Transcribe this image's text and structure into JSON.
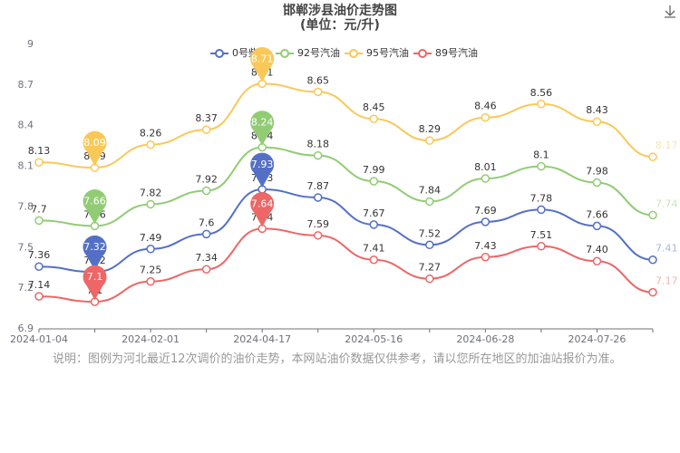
{
  "chart_data": {
    "type": "line",
    "title": "邯郸涉县油价走势图",
    "subtitle": "(单位：元/升)",
    "categories": [
      "2024-01-04",
      null,
      "2024-02-01",
      null,
      "2024-04-17",
      null,
      "2024-05-16",
      null,
      "2024-06-28",
      null,
      "2024-07-26",
      null
    ],
    "series": [
      {
        "name": "0号柴油",
        "color": "#5470c6",
        "values": [
          7.36,
          7.32,
          7.49,
          7.6,
          7.93,
          7.87,
          7.67,
          7.52,
          7.69,
          7.78,
          7.66,
          7.41
        ]
      },
      {
        "name": "92号汽油",
        "color": "#91cc75",
        "values": [
          7.7,
          7.66,
          7.82,
          7.92,
          8.24,
          8.18,
          7.99,
          7.84,
          8.01,
          8.1,
          7.98,
          7.74
        ]
      },
      {
        "name": "95号汽油",
        "color": "#fac858",
        "values": [
          8.13,
          8.09,
          8.26,
          8.37,
          8.71,
          8.65,
          8.45,
          8.29,
          8.46,
          8.56,
          8.43,
          8.17
        ]
      },
      {
        "name": "89号汽油",
        "color": "#ee6666",
        "values": [
          7.14,
          7.1,
          7.25,
          7.34,
          7.64,
          7.59,
          7.41,
          7.27,
          7.43,
          7.51,
          7.4,
          7.17
        ],
        "value_labels": [
          "7.14",
          "7.1",
          "7.25",
          "7.34",
          "7.64",
          "7.59",
          "7.41",
          "7.27",
          "7.43",
          "7.51",
          "7.40",
          "7.17"
        ]
      }
    ],
    "ylim": [
      6.9,
      9
    ],
    "yticks": [
      6.9,
      7.2,
      7.5,
      7.8,
      8.1,
      8.4,
      8.7,
      9
    ],
    "grid": false,
    "note": "说明：图例为河北最近12次调价的油价走势，本网站油价数据仅供参考，请以您所在地区的加油站报价为准。"
  }
}
